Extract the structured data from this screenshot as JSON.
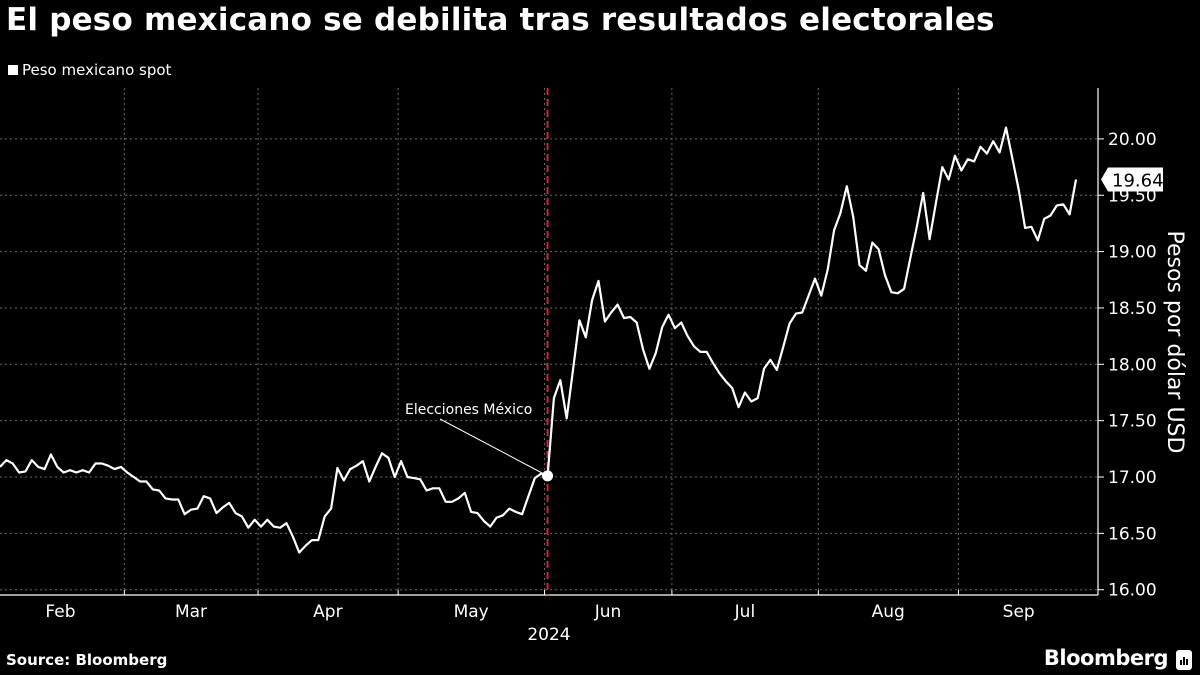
{
  "title": "El peso mexicano se debilita tras resultados electorales",
  "footer": {
    "source": "Source: Bloomberg",
    "brand": "Bloomberg"
  },
  "colors": {
    "background": "#000000",
    "line": "#ffffff",
    "event_line": "#d0213f",
    "grid": "#666666"
  },
  "chart_data": {
    "type": "line",
    "title": "El peso mexicano se debilita tras resultados electorales",
    "xlabel": "2024",
    "ylabel": "Pesos por dólar USD",
    "ylim": [
      16.0,
      20.4
    ],
    "y_ticks": [
      "16.00",
      "16.50",
      "17.00",
      "17.50",
      "18.00",
      "18.50",
      "19.00",
      "19.50",
      "20.00"
    ],
    "x_ticks": [
      "Feb",
      "Mar",
      "Apr",
      "May",
      "Jun",
      "Jul",
      "Aug",
      "Sep"
    ],
    "grid": true,
    "y_axis_side": "right",
    "legend": {
      "position": "top-left",
      "entries": [
        "Peso mexicano spot"
      ]
    },
    "last_value_label": "19.64",
    "annotation": {
      "label": "Elecciones México",
      "date": "2024-06-03",
      "value": 17.01
    },
    "event_line_date": "2024-06-03",
    "series": [
      {
        "name": "Peso mexicano spot",
        "dates": [
          "2024-02-01",
          "2024-02-02",
          "2024-02-06",
          "2024-02-07",
          "2024-02-08",
          "2024-02-09",
          "2024-02-12",
          "2024-02-13",
          "2024-02-14",
          "2024-02-15",
          "2024-02-16",
          "2024-02-19",
          "2024-02-20",
          "2024-02-21",
          "2024-02-22",
          "2024-02-23",
          "2024-02-26",
          "2024-02-27",
          "2024-02-28",
          "2024-02-29",
          "2024-03-01",
          "2024-03-04",
          "2024-03-05",
          "2024-03-06",
          "2024-03-07",
          "2024-03-08",
          "2024-03-11",
          "2024-03-12",
          "2024-03-13",
          "2024-03-14",
          "2024-03-15",
          "2024-03-18",
          "2024-03-19",
          "2024-03-20",
          "2024-03-21",
          "2024-03-22",
          "2024-03-25",
          "2024-03-26",
          "2024-03-27",
          "2024-03-28",
          "2024-03-29",
          "2024-04-01",
          "2024-04-02",
          "2024-04-03",
          "2024-04-04",
          "2024-04-05",
          "2024-04-08",
          "2024-04-09",
          "2024-04-10",
          "2024-04-11",
          "2024-04-12",
          "2024-04-15",
          "2024-04-16",
          "2024-04-17",
          "2024-04-18",
          "2024-04-19",
          "2024-04-22",
          "2024-04-23",
          "2024-04-24",
          "2024-04-25",
          "2024-04-26",
          "2024-04-29",
          "2024-04-30",
          "2024-05-01",
          "2024-05-02",
          "2024-05-03",
          "2024-05-06",
          "2024-05-07",
          "2024-05-08",
          "2024-05-09",
          "2024-05-10",
          "2024-05-13",
          "2024-05-14",
          "2024-05-15",
          "2024-05-16",
          "2024-05-17",
          "2024-05-20",
          "2024-05-21",
          "2024-05-22",
          "2024-05-23",
          "2024-05-24",
          "2024-05-27",
          "2024-05-28",
          "2024-05-29",
          "2024-05-30",
          "2024-05-31",
          "2024-06-03",
          "2024-06-04",
          "2024-06-05",
          "2024-06-06",
          "2024-06-07",
          "2024-06-10",
          "2024-06-11",
          "2024-06-12",
          "2024-06-13",
          "2024-06-14",
          "2024-06-17",
          "2024-06-18",
          "2024-06-19",
          "2024-06-20",
          "2024-06-21",
          "2024-06-24",
          "2024-06-25",
          "2024-06-26",
          "2024-06-27",
          "2024-06-28",
          "2024-07-01",
          "2024-07-02",
          "2024-07-03",
          "2024-07-04",
          "2024-07-05",
          "2024-07-08",
          "2024-07-09",
          "2024-07-10",
          "2024-07-11",
          "2024-07-12",
          "2024-07-15",
          "2024-07-16",
          "2024-07-17",
          "2024-07-18",
          "2024-07-19",
          "2024-07-22",
          "2024-07-23",
          "2024-07-24",
          "2024-07-25",
          "2024-07-26",
          "2024-07-29",
          "2024-07-30",
          "2024-07-31",
          "2024-08-01",
          "2024-08-02",
          "2024-08-05",
          "2024-08-06",
          "2024-08-07",
          "2024-08-08",
          "2024-08-09",
          "2024-08-12",
          "2024-08-13",
          "2024-08-14",
          "2024-08-15",
          "2024-08-16",
          "2024-08-19",
          "2024-08-20",
          "2024-08-21",
          "2024-08-22",
          "2024-08-23",
          "2024-08-26",
          "2024-08-27",
          "2024-08-28",
          "2024-08-29",
          "2024-08-30",
          "2024-09-02",
          "2024-09-03",
          "2024-09-04",
          "2024-09-05",
          "2024-09-06",
          "2024-09-09",
          "2024-09-10",
          "2024-09-11",
          "2024-09-12",
          "2024-09-13",
          "2024-09-16",
          "2024-09-17",
          "2024-09-18",
          "2024-09-19",
          "2024-09-20",
          "2024-09-23",
          "2024-09-24",
          "2024-09-25",
          "2024-09-26"
        ],
        "values": [
          17.09,
          17.15,
          17.12,
          17.04,
          17.05,
          17.15,
          17.09,
          17.07,
          17.2,
          17.09,
          17.04,
          17.06,
          17.04,
          17.06,
          17.04,
          17.12,
          17.12,
          17.1,
          17.07,
          17.09,
          17.04,
          17.0,
          16.96,
          16.96,
          16.89,
          16.88,
          16.81,
          16.8,
          16.8,
          16.67,
          16.71,
          16.72,
          16.83,
          16.81,
          16.68,
          16.73,
          16.77,
          16.68,
          16.65,
          16.55,
          16.62,
          16.56,
          16.62,
          16.56,
          16.55,
          16.59,
          16.47,
          16.33,
          16.39,
          16.44,
          16.44,
          16.65,
          16.72,
          17.08,
          16.97,
          17.07,
          17.1,
          17.14,
          16.96,
          17.09,
          17.21,
          17.17,
          17.0,
          17.14,
          17.0,
          16.99,
          16.98,
          16.88,
          16.9,
          16.9,
          16.78,
          16.78,
          16.81,
          16.86,
          16.69,
          16.68,
          16.61,
          16.56,
          16.64,
          16.66,
          16.72,
          16.69,
          16.67,
          16.83,
          16.99,
          17.03,
          17.01,
          17.7,
          17.86,
          17.52,
          17.95,
          18.39,
          18.24,
          18.57,
          18.74,
          18.38,
          18.46,
          18.53,
          18.41,
          18.42,
          18.37,
          18.13,
          17.96,
          18.1,
          18.33,
          18.44,
          18.32,
          18.37,
          18.25,
          18.16,
          18.11,
          18.11,
          18.01,
          17.92,
          17.85,
          17.79,
          17.62,
          17.75,
          17.67,
          17.7,
          17.96,
          18.04,
          17.95,
          18.15,
          18.36,
          18.45,
          18.46,
          18.61,
          18.76,
          18.61,
          18.84,
          19.19,
          19.34,
          19.58,
          19.31,
          18.88,
          18.83,
          19.08,
          19.02,
          18.79,
          18.64,
          18.63,
          18.67,
          18.95,
          19.22,
          19.52,
          19.11,
          19.43,
          19.75,
          19.64,
          19.85,
          19.72,
          19.82,
          19.8,
          19.93,
          19.87,
          19.98,
          19.88,
          20.1,
          19.83,
          19.55,
          19.21,
          19.22,
          19.1,
          19.29,
          19.32,
          19.41,
          19.42,
          19.33,
          19.64
        ]
      }
    ]
  }
}
